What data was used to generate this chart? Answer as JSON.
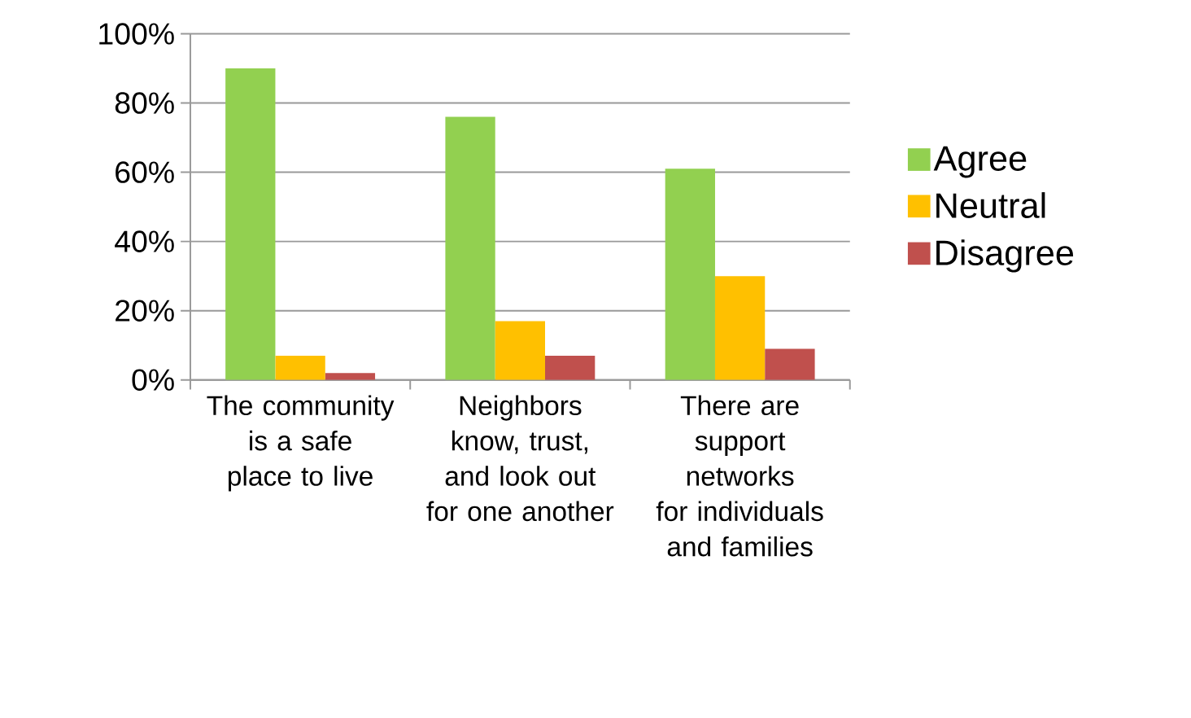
{
  "chart_data": {
    "type": "bar",
    "categories": [
      "The community is a safe place to live",
      "Neighbors know, trust, and look out for one another",
      "There are support networks for individuals and families"
    ],
    "series": [
      {
        "name": "Agree",
        "color": "#92d050",
        "values": [
          90,
          76,
          61
        ]
      },
      {
        "name": "Neutral",
        "color": "#ffc000",
        "values": [
          7,
          17,
          30
        ]
      },
      {
        "name": "Disagree",
        "color": "#c0504d",
        "values": [
          2,
          7,
          9
        ]
      }
    ],
    "ylim": [
      0,
      100
    ],
    "yticks": [
      {
        "value": 0,
        "label": "0%"
      },
      {
        "value": 20,
        "label": "20%"
      },
      {
        "value": 40,
        "label": "40%"
      },
      {
        "value": 60,
        "label": "60%"
      },
      {
        "value": 80,
        "label": "80%"
      },
      {
        "value": 100,
        "label": "100%"
      }
    ],
    "grid": "y",
    "legend": "right"
  }
}
